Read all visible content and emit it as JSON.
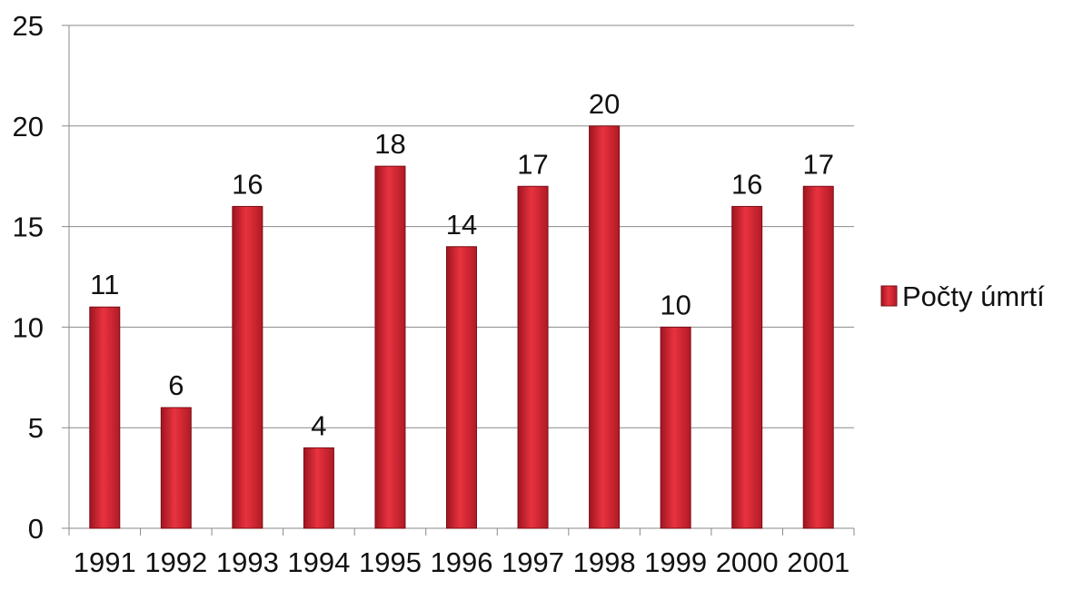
{
  "chart_data": {
    "type": "bar",
    "categories": [
      "1991",
      "1992",
      "1993",
      "1994",
      "1995",
      "1996",
      "1997",
      "1998",
      "1999",
      "2000",
      "2001"
    ],
    "series": [
      {
        "name": "Počty úmrtí",
        "values": [
          11,
          6,
          16,
          4,
          18,
          14,
          17,
          20,
          10,
          16,
          17
        ]
      }
    ],
    "title": "",
    "xlabel": "",
    "ylabel": "",
    "ylim": [
      0,
      25
    ],
    "yticks": [
      0,
      5,
      10,
      15,
      20,
      25
    ],
    "grid": true,
    "data_labels": true,
    "legend": "right",
    "colors": {
      "bar": "#c8202c",
      "grid": "#8a8a8a"
    }
  }
}
